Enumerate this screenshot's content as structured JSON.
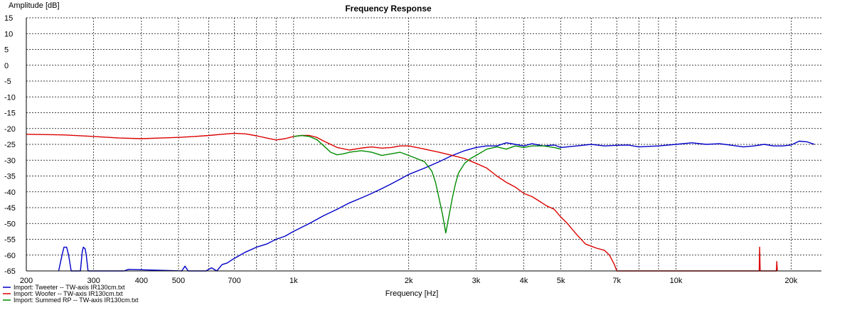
{
  "chart_data": {
    "type": "line",
    "title": "Frequency Response",
    "ylabel": "Amplitude [dB]",
    "xlabel": "Frequency [Hz]",
    "xscale": "log",
    "xlim": [
      200,
      24000
    ],
    "ylim": [
      -65,
      15
    ],
    "grid": true,
    "legend_position": "bottom-left",
    "y_ticks": [
      15,
      10,
      5,
      0,
      -5,
      -10,
      -15,
      -20,
      -25,
      -30,
      -35,
      -40,
      -45,
      -50,
      -55,
      -60,
      -65
    ],
    "y_tick_labels": [
      "15",
      "10",
      "5",
      "0",
      "-5",
      "-10",
      "-15",
      "-20",
      "-25",
      "-30",
      "-35",
      "-40",
      "-45",
      "-50",
      "-55",
      "-60",
      "-65"
    ],
    "x_ticks": [
      200,
      300,
      400,
      500,
      700,
      1000,
      2000,
      3000,
      4000,
      5000,
      7000,
      10000,
      20000
    ],
    "x_tick_labels": [
      "200",
      "300",
      "400",
      "500",
      "700",
      "1k",
      "2k",
      "3k",
      "4k",
      "5k",
      "7k",
      "10k",
      "20k"
    ],
    "x_grid": [
      200,
      300,
      400,
      500,
      600,
      700,
      800,
      900,
      1000,
      2000,
      3000,
      4000,
      5000,
      6000,
      7000,
      8000,
      9000,
      10000,
      20000
    ],
    "series": [
      {
        "name": "Import: Tweeter -- TW-axis IR130cm.txt",
        "color": "#0000c8",
        "x": [
          243,
          248,
          251,
          255,
          258,
          262,
          277,
          280,
          282,
          285,
          287,
          290,
          360,
          370,
          510,
          520,
          530,
          590,
          610,
          630,
          650,
          670,
          700,
          750,
          800,
          850,
          900,
          950,
          1000,
          1100,
          1200,
          1300,
          1400,
          1500,
          1600,
          1700,
          1800,
          1900,
          2000,
          2200,
          2400,
          2600,
          2800,
          3000,
          3200,
          3400,
          3600,
          3800,
          4000,
          4200,
          4500,
          4800,
          5000,
          5500,
          6000,
          6500,
          7000,
          7500,
          8000,
          9000,
          10000,
          11000,
          12000,
          13000,
          14000,
          15000,
          16000,
          17000,
          18000,
          19000,
          20000,
          21000,
          22000,
          23000
        ],
        "y": [
          -65,
          -60,
          -57.5,
          -57.5,
          -60,
          -65,
          -65,
          -59,
          -57.5,
          -58,
          -60,
          -65,
          -65,
          -64.5,
          -65,
          -63.5,
          -65,
          -65,
          -64,
          -65,
          -63,
          -62.5,
          -61,
          -59,
          -57.5,
          -56.5,
          -55,
          -54,
          -52.5,
          -50,
          -47.5,
          -45.5,
          -43.5,
          -42,
          -40.5,
          -39,
          -37.5,
          -36,
          -34.5,
          -32.5,
          -30.5,
          -28.5,
          -27,
          -26,
          -25.5,
          -25.5,
          -24.5,
          -25,
          -25.5,
          -24.8,
          -25.5,
          -25.2,
          -26,
          -25.5,
          -25,
          -25.5,
          -25.3,
          -25.2,
          -25.8,
          -25.5,
          -25,
          -24.5,
          -25,
          -24.8,
          -25.3,
          -25.8,
          -25.5,
          -25,
          -25.5,
          -25.5,
          -25.2,
          -24,
          -24.2,
          -25
        ]
      },
      {
        "name": "Import: Woofer -- TW-axis IR130cm.txt",
        "color": "#dc0000",
        "x": [
          200,
          250,
          300,
          350,
          400,
          450,
          500,
          550,
          600,
          650,
          700,
          750,
          800,
          850,
          900,
          950,
          1000,
          1050,
          1100,
          1150,
          1200,
          1300,
          1400,
          1500,
          1600,
          1700,
          1800,
          1900,
          2000,
          2100,
          2200,
          2400,
          2600,
          2800,
          3000,
          3200,
          3400,
          3600,
          3800,
          4000,
          4200,
          4400,
          4600,
          4800,
          5000,
          5200,
          5500,
          5800,
          6200,
          6500,
          6700,
          6900,
          7000,
          16500,
          16550,
          16600,
          18300,
          18350,
          18400
        ],
        "y": [
          -21.8,
          -22,
          -22.5,
          -23,
          -23.2,
          -23,
          -22.8,
          -22.5,
          -22.2,
          -21.8,
          -21.5,
          -21.7,
          -22.3,
          -23,
          -23.6,
          -23.2,
          -22.5,
          -22.2,
          -22.2,
          -22.8,
          -24,
          -26,
          -26.8,
          -26.2,
          -25.8,
          -26.2,
          -26,
          -25.5,
          -25.5,
          -26,
          -26.5,
          -27.5,
          -28.5,
          -29.5,
          -31,
          -32.5,
          -35,
          -37,
          -38.5,
          -40.5,
          -41.5,
          -43,
          -44.5,
          -45.5,
          -48,
          -50,
          -53.5,
          -56.5,
          -57.8,
          -58.5,
          -60,
          -63,
          -65,
          -65,
          -57.5,
          -65,
          -65,
          -62,
          -65
        ]
      },
      {
        "name": "Import: Summed RP -- TW-axis IR130cm.txt",
        "color": "#008c00",
        "x": [
          1000,
          1050,
          1100,
          1150,
          1200,
          1250,
          1300,
          1350,
          1400,
          1500,
          1600,
          1700,
          1800,
          1900,
          2000,
          2100,
          2200,
          2300,
          2350,
          2400,
          2450,
          2500,
          2550,
          2600,
          2650,
          2700,
          2800,
          2900,
          3000,
          3200,
          3400,
          3600,
          3800,
          4000,
          4200,
          4500,
          4800,
          5000
        ],
        "y": [
          -22.5,
          -22.2,
          -22.5,
          -23.5,
          -25.5,
          -27.5,
          -28.3,
          -28,
          -27.5,
          -27,
          -27.5,
          -28.5,
          -28,
          -27.5,
          -28.5,
          -29.5,
          -30.5,
          -33.5,
          -37,
          -42,
          -47,
          -53,
          -47.5,
          -42,
          -37.5,
          -34,
          -31,
          -29.5,
          -28.5,
          -26.5,
          -25.8,
          -26.5,
          -25.5,
          -26,
          -25.5,
          -25.5,
          -26,
          -26.5
        ]
      }
    ]
  }
}
